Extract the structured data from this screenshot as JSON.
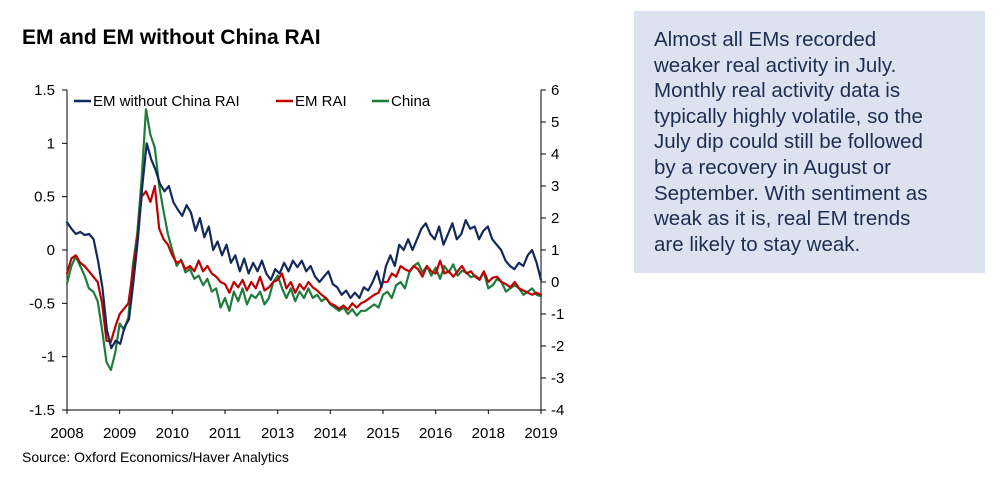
{
  "chart_data": {
    "type": "line",
    "title": "EM and EM without China RAI",
    "source": "Source: Oxford Economics/Haver Analytics",
    "x_tick_labels": [
      "2008",
      "2009",
      "2010",
      "2011",
      "2013",
      "2014",
      "2015",
      "2016",
      "2018",
      "2019"
    ],
    "x_range": [
      0,
      108
    ],
    "left_axis": {
      "range": [
        -1.5,
        1.5
      ],
      "ticks": [
        "1.5",
        "1",
        "0.5",
        "0",
        "-0.5",
        "-1",
        "-1.5"
      ]
    },
    "right_axis": {
      "range": [
        -4,
        6
      ],
      "ticks": [
        "6",
        "5",
        "4",
        "3",
        "2",
        "1",
        "0",
        "-1",
        "-2",
        "-3",
        "-4"
      ]
    },
    "legend": [
      "EM without China RAI",
      "EM RAI",
      "China"
    ],
    "series": [
      {
        "name": "EM without China RAI",
        "axis": "left",
        "color": "#13295b",
        "values": [
          0.26,
          0.2,
          0.15,
          0.17,
          0.14,
          0.15,
          0.1,
          -0.1,
          -0.35,
          -0.75,
          -0.92,
          -0.85,
          -0.88,
          -0.72,
          -0.65,
          -0.3,
          0.1,
          0.6,
          1.0,
          0.85,
          0.75,
          0.62,
          0.55,
          0.6,
          0.45,
          0.38,
          0.32,
          0.42,
          0.35,
          0.18,
          0.3,
          0.12,
          0.22,
          0.0,
          0.08,
          -0.05,
          0.05,
          -0.12,
          -0.05,
          -0.2,
          -0.08,
          -0.22,
          -0.12,
          -0.2,
          -0.1,
          -0.22,
          -0.28,
          -0.18,
          -0.22,
          -0.12,
          -0.2,
          -0.1,
          -0.16,
          -0.1,
          -0.2,
          -0.15,
          -0.25,
          -0.3,
          -0.25,
          -0.2,
          -0.32,
          -0.35,
          -0.42,
          -0.38,
          -0.45,
          -0.4,
          -0.45,
          -0.35,
          -0.38,
          -0.3,
          -0.2,
          -0.35,
          -0.15,
          -0.05,
          -0.15,
          0.05,
          0.0,
          0.1,
          0.0,
          0.1,
          0.2,
          0.25,
          0.15,
          0.1,
          0.22,
          0.05,
          0.15,
          0.25,
          0.1,
          0.15,
          0.28,
          0.2,
          0.22,
          0.1,
          0.18,
          0.22,
          0.1,
          0.05,
          0.0,
          -0.1,
          -0.15,
          -0.18,
          -0.12,
          -0.15,
          -0.05,
          0.0,
          -0.12,
          -0.28
        ]
      },
      {
        "name": "EM RAI",
        "axis": "left",
        "color": "#c00000",
        "values": [
          -0.22,
          -0.08,
          -0.05,
          -0.12,
          -0.15,
          -0.2,
          -0.25,
          -0.3,
          -0.5,
          -0.85,
          -0.86,
          -0.72,
          -0.6,
          -0.55,
          -0.5,
          -0.2,
          0.1,
          0.5,
          0.55,
          0.45,
          0.6,
          0.2,
          0.1,
          0.05,
          -0.05,
          -0.12,
          -0.1,
          -0.18,
          -0.15,
          -0.2,
          -0.1,
          -0.2,
          -0.15,
          -0.22,
          -0.25,
          -0.3,
          -0.32,
          -0.4,
          -0.3,
          -0.35,
          -0.28,
          -0.38,
          -0.3,
          -0.36,
          -0.25,
          -0.38,
          -0.35,
          -0.3,
          -0.28,
          -0.22,
          -0.36,
          -0.3,
          -0.4,
          -0.32,
          -0.37,
          -0.3,
          -0.35,
          -0.38,
          -0.42,
          -0.45,
          -0.5,
          -0.52,
          -0.55,
          -0.52,
          -0.56,
          -0.5,
          -0.54,
          -0.5,
          -0.48,
          -0.45,
          -0.42,
          -0.4,
          -0.3,
          -0.3,
          -0.22,
          -0.25,
          -0.15,
          -0.18,
          -0.2,
          -0.15,
          -0.18,
          -0.25,
          -0.15,
          -0.2,
          -0.22,
          -0.1,
          -0.22,
          -0.2,
          -0.25,
          -0.2,
          -0.15,
          -0.22,
          -0.2,
          -0.25,
          -0.28,
          -0.2,
          -0.3,
          -0.26,
          -0.25,
          -0.3,
          -0.32,
          -0.35,
          -0.3,
          -0.36,
          -0.38,
          -0.4,
          -0.42,
          -0.4,
          -0.42
        ]
      },
      {
        "name": "China",
        "axis": "right",
        "color": "#1e7d3c",
        "values": [
          -0.05,
          0.5,
          0.8,
          0.5,
          0.2,
          -0.2,
          -0.3,
          -0.6,
          -1.5,
          -2.5,
          -2.75,
          -2.2,
          -1.3,
          -1.5,
          -1.1,
          0.5,
          1.5,
          3.2,
          5.4,
          4.6,
          4.2,
          3.0,
          2.2,
          1.5,
          1.0,
          0.5,
          0.7,
          0.3,
          0.4,
          0.1,
          0.2,
          -0.1,
          0.1,
          -0.3,
          -0.2,
          -0.8,
          -0.5,
          -0.9,
          -0.3,
          -0.6,
          -0.2,
          -0.7,
          -0.4,
          -0.5,
          -0.3,
          -0.7,
          -0.5,
          0.0,
          0.2,
          -0.2,
          -0.5,
          -0.2,
          -0.6,
          -0.3,
          -0.5,
          -0.2,
          -0.5,
          -0.4,
          -0.6,
          -0.5,
          -0.7,
          -0.8,
          -0.9,
          -0.8,
          -1.0,
          -0.85,
          -1.05,
          -0.9,
          -0.9,
          -0.8,
          -0.7,
          -0.8,
          -0.4,
          -0.3,
          -0.5,
          -0.1,
          0.0,
          -0.2,
          0.3,
          0.5,
          0.6,
          0.3,
          0.5,
          0.2,
          0.45,
          0.1,
          0.5,
          0.3,
          0.55,
          0.2,
          0.35,
          0.3,
          0.15,
          0.2,
          0.1,
          0.3,
          -0.2,
          -0.1,
          0.1,
          0.0,
          -0.3,
          -0.2,
          -0.1,
          -0.2,
          -0.4,
          -0.3,
          -0.2,
          -0.4,
          -0.45
        ]
      }
    ]
  },
  "commentary": {
    "lines": [
      "Almost all EMs recorded",
      "weaker real activity in July.",
      "Monthly real activity data is",
      "typically highly volatile, so the",
      "July dip could still be followed",
      "by a recovery in August or",
      "September. With sentiment as",
      "weak as it is, real EM trends",
      "are likely to stay weak."
    ]
  }
}
